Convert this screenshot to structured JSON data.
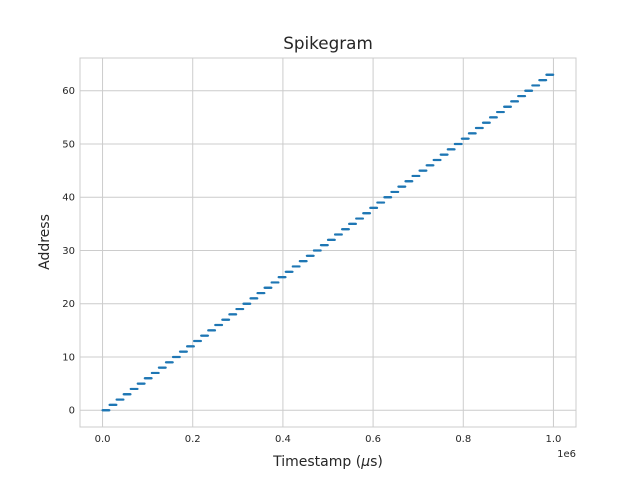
{
  "chart_data": {
    "type": "scatter",
    "title": "Spikegram",
    "xlabel_text": "Timestamp (",
    "xlabel_mu": "μ",
    "xlabel_unit": "s)",
    "ylabel": "Address",
    "x_offset_label": "1e6",
    "xlim": [
      -50000,
      1050000
    ],
    "ylim": [
      -3.15,
      66.15
    ],
    "x_ticks": [
      0,
      200000,
      400000,
      600000,
      800000,
      1000000
    ],
    "x_tick_labels": [
      "0.0",
      "0.2",
      "0.4",
      "0.6",
      "0.8",
      "1.0"
    ],
    "y_ticks": [
      0,
      10,
      20,
      30,
      40,
      50,
      60
    ],
    "y_tick_labels": [
      "0",
      "10",
      "20",
      "30",
      "40",
      "50",
      "60"
    ],
    "grid": true,
    "series_color": "#1f77b4",
    "spike_pattern": "each address 0–63 fires in its own consecutive time window of 15625 µs, spikes spaced 1000 µs",
    "spikes_per_address": 16,
    "spike_spacing_us": 1000,
    "address_window_us": 15625,
    "num_addresses": 64
  }
}
